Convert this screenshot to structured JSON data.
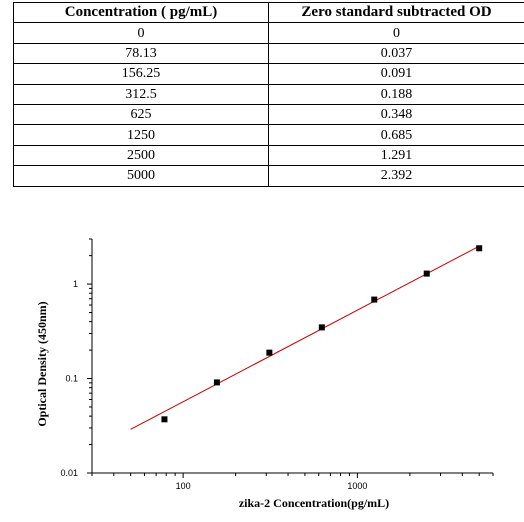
{
  "table": {
    "headers": [
      "Concentration ( pg/mL)",
      "Zero standard subtracted OD"
    ],
    "rows": [
      [
        "0",
        "0"
      ],
      [
        "78.13",
        "0.037"
      ],
      [
        "156.25",
        "0.091"
      ],
      [
        "312.5",
        "0.188"
      ],
      [
        "625",
        "0.348"
      ],
      [
        "1250",
        "0.685"
      ],
      [
        "2500",
        "1.291"
      ],
      [
        "5000",
        "2.392"
      ]
    ]
  },
  "chart_data": {
    "type": "scatter",
    "xlabel": "zika-2  Concentration(pg/mL)",
    "ylabel": "Optical Density (450nm)",
    "x_scale": "log",
    "y_scale": "log",
    "xlim": [
      30,
      6000
    ],
    "ylim": [
      0.01,
      3
    ],
    "x_ticks": [
      100,
      1000
    ],
    "x_tick_labels": [
      "100",
      "1000"
    ],
    "y_ticks": [
      0.01,
      0.1,
      1
    ],
    "y_tick_labels": [
      "0.01",
      "0.1",
      "1"
    ],
    "grid": false,
    "colors": {
      "points": "#000000",
      "fit_line": "#cc0000"
    },
    "series": [
      {
        "x": [
          78.13,
          156.25,
          312.5,
          625,
          1250,
          2500,
          5000
        ],
        "y": [
          0.037,
          0.091,
          0.188,
          0.348,
          0.685,
          1.291,
          2.392
        ]
      }
    ],
    "fit_line": {
      "x": [
        50,
        5000
      ],
      "y": [
        0.029,
        2.52
      ]
    }
  }
}
